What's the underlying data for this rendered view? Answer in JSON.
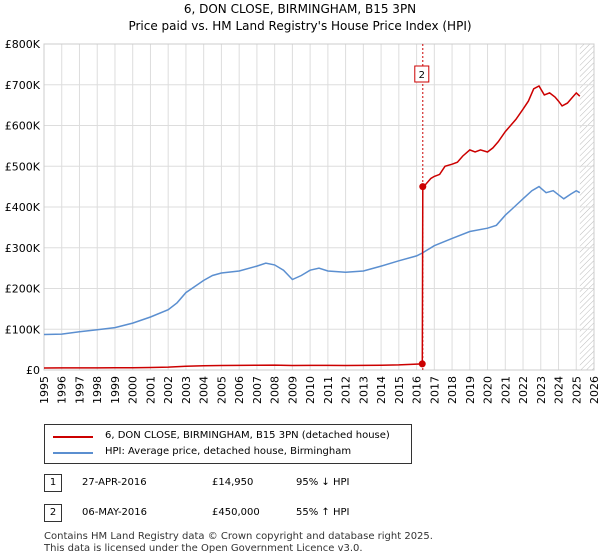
{
  "header": {
    "title": "6, DON CLOSE, BIRMINGHAM, B15 3PN",
    "subtitle": "Price paid vs. HM Land Registry's House Price Index (HPI)"
  },
  "colors": {
    "property": "#cc0000",
    "hpi": "#5b8fd0",
    "grid": "#dddddd",
    "marker_line": "#cc0000"
  },
  "chart_data": {
    "type": "line",
    "title": "6, DON CLOSE, BIRMINGHAM, B15 3PN",
    "subtitle": "Price paid vs. HM Land Registry's House Price Index (HPI)",
    "xlim": [
      1995,
      2026
    ],
    "ylim": [
      0,
      800000
    ],
    "x_ticks": [
      "1995",
      "1996",
      "1997",
      "1998",
      "1999",
      "2000",
      "2001",
      "2002",
      "2003",
      "2004",
      "2005",
      "2006",
      "2007",
      "2008",
      "2009",
      "2010",
      "2011",
      "2012",
      "2013",
      "2014",
      "2015",
      "2016",
      "2017",
      "2018",
      "2019",
      "2020",
      "2021",
      "2022",
      "2023",
      "2024",
      "2025",
      "2026"
    ],
    "y_ticks": [
      {
        "value": 0,
        "label": "£0"
      },
      {
        "value": 100000,
        "label": "£100K"
      },
      {
        "value": 200000,
        "label": "£200K"
      },
      {
        "value": 300000,
        "label": "£300K"
      },
      {
        "value": 400000,
        "label": "£400K"
      },
      {
        "value": 500000,
        "label": "£500K"
      },
      {
        "value": 600000,
        "label": "£600K"
      },
      {
        "value": 700000,
        "label": "£700K"
      },
      {
        "value": 800000,
        "label": "£800K"
      }
    ],
    "grid": true,
    "legend_position": "bottom",
    "series": [
      {
        "name": "6, DON CLOSE, BIRMINGHAM, B15 3PN (detached house)",
        "color": "#cc0000",
        "points": [
          [
            1995.0,
            5000
          ],
          [
            1996.0,
            5100
          ],
          [
            1997.0,
            5100
          ],
          [
            1998.0,
            5200
          ],
          [
            1999.0,
            5300
          ],
          [
            2000.0,
            5500
          ],
          [
            2001.0,
            6200
          ],
          [
            2002.0,
            7200
          ],
          [
            2003.0,
            9000
          ],
          [
            2004.0,
            10500
          ],
          [
            2005.0,
            11000
          ],
          [
            2006.0,
            11300
          ],
          [
            2007.0,
            11800
          ],
          [
            2008.0,
            12000
          ],
          [
            2009.0,
            11000
          ],
          [
            2010.0,
            11300
          ],
          [
            2011.0,
            11200
          ],
          [
            2012.0,
            11100
          ],
          [
            2013.0,
            11200
          ],
          [
            2014.0,
            11800
          ],
          [
            2015.0,
            12600
          ],
          [
            2016.32,
            14950
          ],
          [
            2016.35,
            450000
          ],
          [
            2016.5,
            455000
          ],
          [
            2016.8,
            470000
          ],
          [
            2017.0,
            475000
          ],
          [
            2017.3,
            480000
          ],
          [
            2017.6,
            500000
          ],
          [
            2018.0,
            505000
          ],
          [
            2018.3,
            510000
          ],
          [
            2018.6,
            525000
          ],
          [
            2019.0,
            540000
          ],
          [
            2019.3,
            535000
          ],
          [
            2019.6,
            540000
          ],
          [
            2020.0,
            535000
          ],
          [
            2020.3,
            545000
          ],
          [
            2020.6,
            560000
          ],
          [
            2021.0,
            585000
          ],
          [
            2021.3,
            600000
          ],
          [
            2021.6,
            615000
          ],
          [
            2022.0,
            640000
          ],
          [
            2022.3,
            660000
          ],
          [
            2022.6,
            690000
          ],
          [
            2022.9,
            697000
          ],
          [
            2023.2,
            675000
          ],
          [
            2023.5,
            680000
          ],
          [
            2023.8,
            670000
          ],
          [
            2024.0,
            660000
          ],
          [
            2024.2,
            648000
          ],
          [
            2024.5,
            655000
          ],
          [
            2024.8,
            670000
          ],
          [
            2025.0,
            680000
          ],
          [
            2025.2,
            672000
          ]
        ]
      },
      {
        "name": "HPI: Average price, detached house, Birmingham",
        "color": "#5b8fd0",
        "points": [
          [
            1995.0,
            87000
          ],
          [
            1996.0,
            88000
          ],
          [
            1997.0,
            94000
          ],
          [
            1998.0,
            99000
          ],
          [
            1999.0,
            104000
          ],
          [
            2000.0,
            115000
          ],
          [
            2001.0,
            130000
          ],
          [
            2002.0,
            148000
          ],
          [
            2002.5,
            165000
          ],
          [
            2003.0,
            190000
          ],
          [
            2003.5,
            205000
          ],
          [
            2004.0,
            220000
          ],
          [
            2004.5,
            232000
          ],
          [
            2005.0,
            238000
          ],
          [
            2006.0,
            243000
          ],
          [
            2007.0,
            255000
          ],
          [
            2007.5,
            262000
          ],
          [
            2008.0,
            258000
          ],
          [
            2008.5,
            245000
          ],
          [
            2009.0,
            222000
          ],
          [
            2009.5,
            232000
          ],
          [
            2010.0,
            245000
          ],
          [
            2010.5,
            250000
          ],
          [
            2011.0,
            243000
          ],
          [
            2012.0,
            240000
          ],
          [
            2013.0,
            243000
          ],
          [
            2014.0,
            255000
          ],
          [
            2015.0,
            268000
          ],
          [
            2016.0,
            280000
          ],
          [
            2016.32,
            287000
          ],
          [
            2017.0,
            305000
          ],
          [
            2018.0,
            323000
          ],
          [
            2019.0,
            340000
          ],
          [
            2020.0,
            348000
          ],
          [
            2020.5,
            355000
          ],
          [
            2021.0,
            380000
          ],
          [
            2021.5,
            400000
          ],
          [
            2022.0,
            420000
          ],
          [
            2022.5,
            440000
          ],
          [
            2022.9,
            450000
          ],
          [
            2023.3,
            435000
          ],
          [
            2023.7,
            440000
          ],
          [
            2024.0,
            430000
          ],
          [
            2024.3,
            420000
          ],
          [
            2024.7,
            432000
          ],
          [
            2025.0,
            440000
          ],
          [
            2025.2,
            435000
          ]
        ]
      }
    ],
    "markers": [
      {
        "label": "1",
        "x": 2016.32,
        "y": 14950
      },
      {
        "label": "2",
        "x": 2016.35,
        "y": 450000
      }
    ],
    "forecast_start": 2025.2
  },
  "legend": {
    "items": [
      {
        "label": "6, DON CLOSE, BIRMINGHAM, B15 3PN (detached house)"
      },
      {
        "label": "HPI: Average price, detached house, Birmingham"
      }
    ]
  },
  "transactions": [
    {
      "num": "1",
      "date": "27-APR-2016",
      "price": "£14,950",
      "hpi": "95% ↓ HPI"
    },
    {
      "num": "2",
      "date": "06-MAY-2016",
      "price": "£450,000",
      "hpi": "55% ↑ HPI"
    }
  ],
  "footer": {
    "line1": "Contains HM Land Registry data © Crown copyright and database right 2025.",
    "line2": "This data is licensed under the Open Government Licence v3.0."
  }
}
